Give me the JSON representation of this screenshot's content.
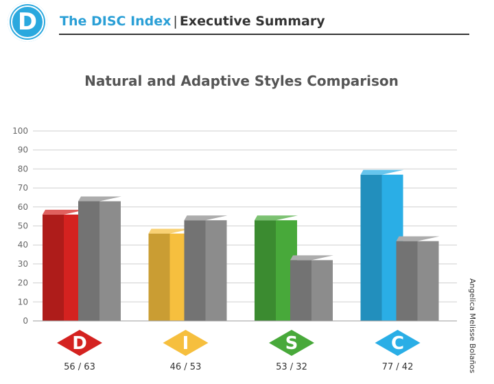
{
  "header": {
    "logo_letter": "D",
    "brand": "The DISC Index",
    "separator": "|",
    "section": "Executive Summary"
  },
  "person_name": "Angelica Melisse Bolaños",
  "chart_data": {
    "type": "bar",
    "title": "Natural and Adaptive Styles Comparison",
    "categories": [
      "D",
      "I",
      "S",
      "C"
    ],
    "category_labels": [
      "56 / 63",
      "46 / 53",
      "53 / 32",
      "77 / 42"
    ],
    "category_colors": [
      "#d42220",
      "#f6bf3e",
      "#48a93a",
      "#2aaee6"
    ],
    "series": [
      {
        "values": [
          56,
          46,
          53,
          77
        ]
      },
      {
        "values": [
          63,
          53,
          32,
          42
        ]
      }
    ],
    "adaptive_color": "#8c8c8c",
    "ylim": [
      0,
      100
    ],
    "yticks": [
      0,
      10,
      20,
      30,
      40,
      50,
      60,
      70,
      80,
      90,
      100
    ],
    "grid": true
  }
}
